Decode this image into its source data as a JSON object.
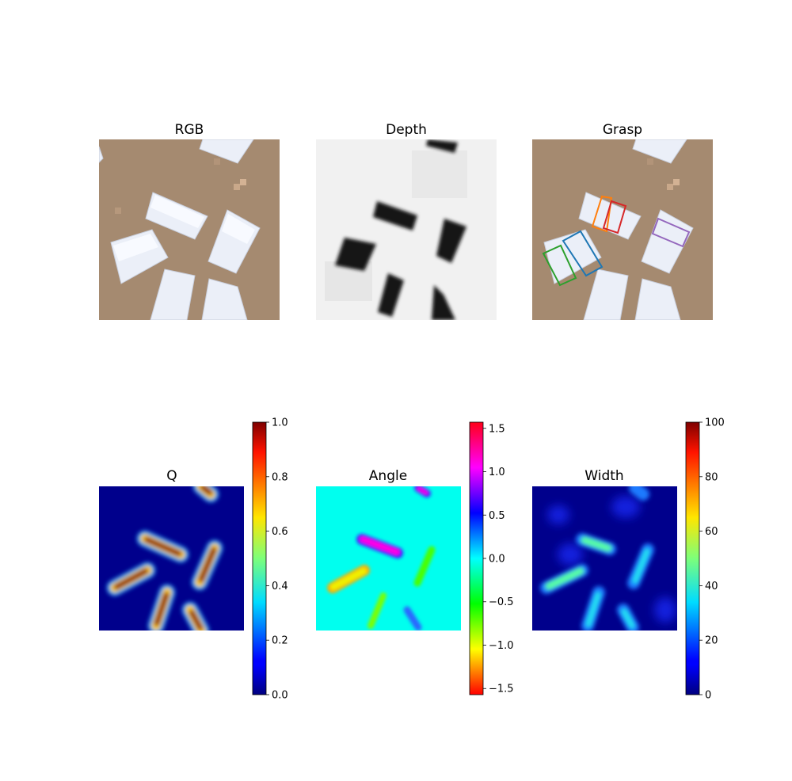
{
  "figure": {
    "panels": [
      {
        "id": "rgb",
        "title": "RGB"
      },
      {
        "id": "depth",
        "title": "Depth"
      },
      {
        "id": "grasp",
        "title": "Grasp"
      },
      {
        "id": "q",
        "title": "Q"
      },
      {
        "id": "angle",
        "title": "Angle"
      },
      {
        "id": "width",
        "title": "Width"
      }
    ]
  },
  "chart_data": [
    {
      "type": "heatmap",
      "title": "RGB",
      "axes": "off"
    },
    {
      "type": "heatmap",
      "title": "Depth",
      "axes": "off",
      "colormap": "gray"
    },
    {
      "type": "heatmap",
      "title": "Grasp",
      "axes": "off",
      "grasp_rectangles": [
        {
          "color": "#1f77b4"
        },
        {
          "color": "#ff7f0e"
        },
        {
          "color": "#2ca02c"
        },
        {
          "color": "#d62728"
        },
        {
          "color": "#9467bd"
        }
      ]
    },
    {
      "type": "heatmap",
      "title": "Q",
      "axes": "off",
      "colormap": "jet",
      "colorbar": {
        "min": 0.0,
        "max": 1.0,
        "ticks": [
          {
            "value": 0.0,
            "label": "0.0"
          },
          {
            "value": 0.2,
            "label": "0.2"
          },
          {
            "value": 0.4,
            "label": "0.4"
          },
          {
            "value": 0.6,
            "label": "0.6"
          },
          {
            "value": 0.8,
            "label": "0.8"
          },
          {
            "value": 1.0,
            "label": "1.0"
          }
        ]
      }
    },
    {
      "type": "heatmap",
      "title": "Angle",
      "axes": "off",
      "colormap": "hsv",
      "colorbar": {
        "min": -1.5708,
        "max": 1.5708,
        "ticks": [
          {
            "value": 1.5,
            "label": "1.5"
          },
          {
            "value": 1.0,
            "label": "1.0"
          },
          {
            "value": 0.5,
            "label": "0.5"
          },
          {
            "value": 0.0,
            "label": "0.0"
          },
          {
            "value": -0.5,
            "label": "−0.5"
          },
          {
            "value": -1.0,
            "label": "−1.0"
          },
          {
            "value": -1.5,
            "label": "−1.5"
          }
        ]
      }
    },
    {
      "type": "heatmap",
      "title": "Width",
      "axes": "off",
      "colormap": "jet",
      "colorbar": {
        "min": 0,
        "max": 100,
        "ticks": [
          {
            "value": 0,
            "label": "0"
          },
          {
            "value": 20,
            "label": "20"
          },
          {
            "value": 40,
            "label": "40"
          },
          {
            "value": 60,
            "label": "60"
          },
          {
            "value": 80,
            "label": "80"
          },
          {
            "value": 100,
            "label": "100"
          }
        ]
      }
    }
  ]
}
